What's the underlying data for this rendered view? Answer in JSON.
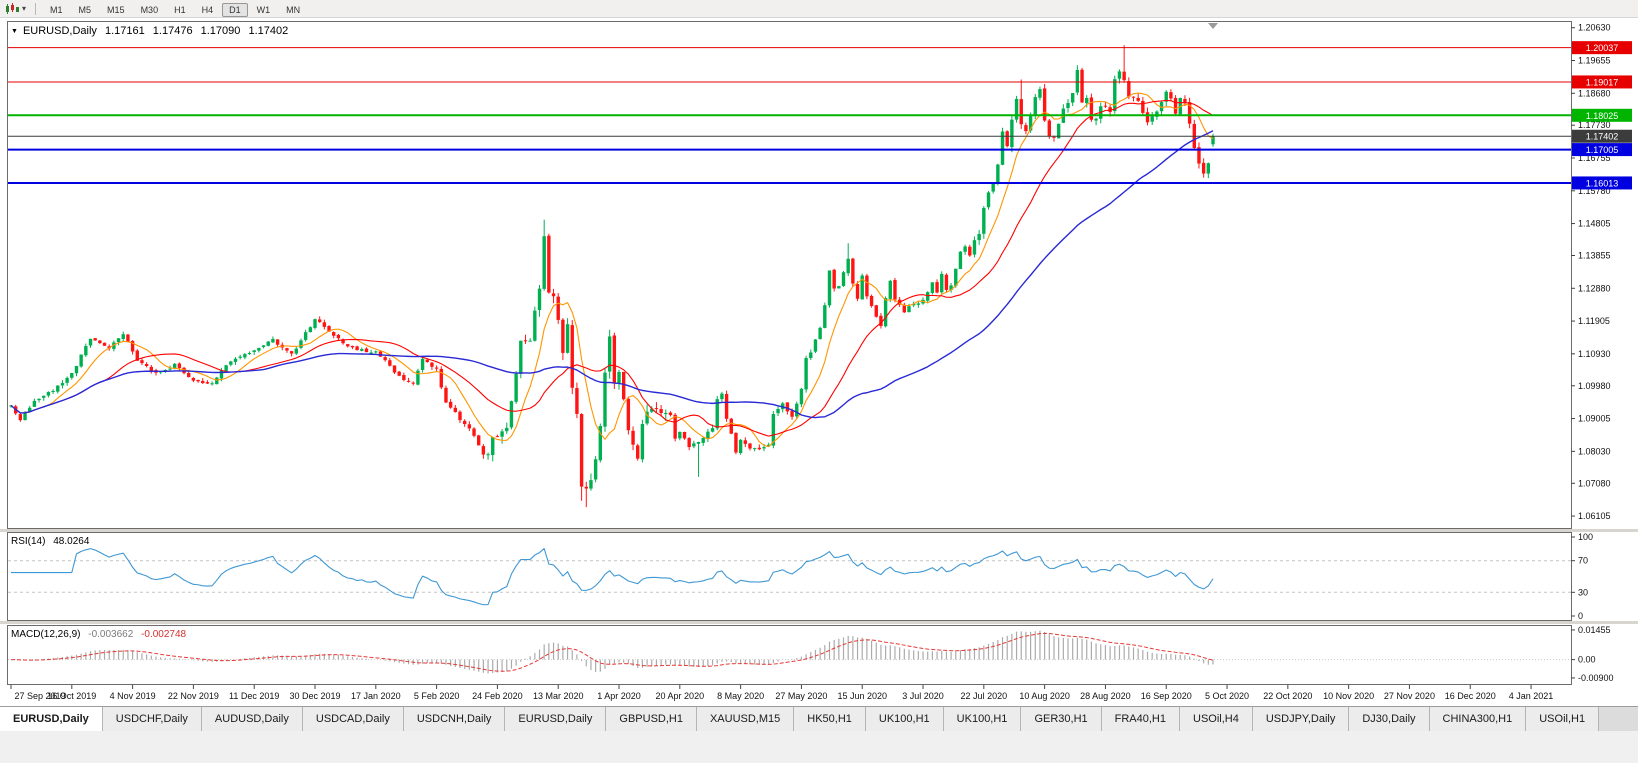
{
  "toolbar": {
    "timeframes": [
      "M1",
      "M5",
      "M15",
      "M30",
      "H1",
      "H4",
      "D1",
      "W1",
      "MN"
    ],
    "active_timeframe": "D1"
  },
  "chart": {
    "title": {
      "symbol": "EURUSD,Daily",
      "open": "1.17161",
      "high": "1.17476",
      "low": "1.17090",
      "close": "1.17402"
    },
    "price_axis_labels": [
      "1.20630",
      "1.19655",
      "1.18680",
      "1.17730",
      "1.16755",
      "1.15780",
      "1.14805",
      "1.13855",
      "1.12880",
      "1.11905",
      "1.10930",
      "1.09980",
      "1.09005",
      "1.08030",
      "1.07080",
      "1.06105"
    ],
    "levels": [
      {
        "value": 1.20037,
        "label": "1.20037",
        "color": "#e60000",
        "line_width": 1
      },
      {
        "value": 1.19017,
        "label": "1.19017",
        "color": "#e60000",
        "line_width": 1
      },
      {
        "value": 1.18025,
        "label": "1.18025",
        "color": "#00b400",
        "line_width": 2
      },
      {
        "value": 1.17402,
        "label": "1.17402",
        "color": "#3c3c3c",
        "line_width": 1,
        "current": true
      },
      {
        "value": 1.17005,
        "label": "1.17005",
        "color": "#0000e0",
        "line_width": 2
      },
      {
        "value": 1.16013,
        "label": "1.16013",
        "color": "#0000e0",
        "line_width": 2
      }
    ],
    "date_labels": [
      "27 Sep 2019",
      "16 Oct 2019",
      "4 Nov 2019",
      "22 Nov 2019",
      "11 Dec 2019",
      "30 Dec 2019",
      "17 Jan 2020",
      "5 Feb 2020",
      "24 Feb 2020",
      "13 Mar 2020",
      "1 Apr 2020",
      "20 Apr 2020",
      "8 May 2020",
      "27 May 2020",
      "15 Jun 2020",
      "3 Jul 2020",
      "22 Jul 2020",
      "10 Aug 2020",
      "28 Aug 2020",
      "16 Sep 2020",
      "5 Oct 2020",
      "22 Oct 2020",
      "10 Nov 2020",
      "27 Nov 2020",
      "16 Dec 2020",
      "4 Jan 2021"
    ],
    "colors": {
      "up": "#00b050",
      "down": "#ff1414",
      "ma_fast": "#ff9500",
      "ma_mid": "#ff0000",
      "ma_slow": "#2929d6",
      "rsi": "#3f98d4",
      "macd_hist": "#ababab",
      "macd_signal": "#e53935"
    }
  },
  "indicators": {
    "rsi": {
      "name": "RSI(14)",
      "value": "48.0264",
      "levels": [
        {
          "value": 100,
          "label": "100"
        },
        {
          "value": 70,
          "label": "70",
          "dashed": true
        },
        {
          "value": 30,
          "label": "30",
          "dashed": true
        },
        {
          "value": 0,
          "label": "0"
        }
      ]
    },
    "macd": {
      "name": "MACD(12,26,9)",
      "value_main": "-0.003662",
      "value_signal": "-0.002748",
      "levels": [
        {
          "value": 0.01455,
          "label": "0.01455"
        },
        {
          "value": 0,
          "label": "0.00"
        },
        {
          "value": -0.009,
          "label": "-0.00900"
        }
      ]
    }
  },
  "tabs": [
    {
      "label": "EURUSD,Daily",
      "active": true
    },
    {
      "label": "USDCHF,Daily"
    },
    {
      "label": "AUDUSD,Daily"
    },
    {
      "label": "USDCAD,Daily"
    },
    {
      "label": "USDCNH,Daily"
    },
    {
      "label": "EURUSD,Daily"
    },
    {
      "label": "GBPUSD,H1"
    },
    {
      "label": "XAUUSD,M15"
    },
    {
      "label": "HK50,H1"
    },
    {
      "label": "UK100,H1"
    },
    {
      "label": "UK100,H1"
    },
    {
      "label": "GER30,H1"
    },
    {
      "label": "FRA40,H1"
    },
    {
      "label": "USOil,H4"
    },
    {
      "label": "USDJPY,Daily"
    },
    {
      "label": "DJ30,Daily"
    },
    {
      "label": "CHINA300,H1"
    },
    {
      "label": "USOil,H1"
    }
  ],
  "chart_data": {
    "type": "candlestick",
    "symbol": "EURUSD",
    "timeframe": "Daily",
    "bars": 258,
    "x_range": [
      "27 Sep 2019",
      "29 Sep 2020"
    ],
    "y_range": [
      1.0575,
      1.208
    ],
    "last_candle": {
      "open": 1.17161,
      "high": 1.17476,
      "low": 1.1709,
      "close": 1.17402
    },
    "ma_periods": [
      8,
      21,
      55
    ],
    "key_levels": [
      1.20037,
      1.19017,
      1.18025,
      1.17005,
      1.16013
    ],
    "anchors": [
      [
        0,
        1.0938
      ],
      [
        2,
        1.09
      ],
      [
        5,
        1.0955
      ],
      [
        9,
        1.0985
      ],
      [
        13,
        1.1035
      ],
      [
        17,
        1.114
      ],
      [
        21,
        1.111
      ],
      [
        24,
        1.1155
      ],
      [
        27,
        1.1075
      ],
      [
        31,
        1.1035
      ],
      [
        35,
        1.106
      ],
      [
        39,
        1.1015
      ],
      [
        43,
        1.1005
      ],
      [
        47,
        1.1075
      ],
      [
        52,
        1.1105
      ],
      [
        56,
        1.1135
      ],
      [
        60,
        1.109
      ],
      [
        64,
        1.1175
      ],
      [
        65,
        1.12
      ],
      [
        67,
        1.117
      ],
      [
        70,
        1.1135
      ],
      [
        74,
        1.1105
      ],
      [
        78,
        1.11
      ],
      [
        83,
        1.1025
      ],
      [
        86,
        1.1
      ],
      [
        88,
        1.108
      ],
      [
        91,
        1.1045
      ],
      [
        93,
        1.0945
      ],
      [
        98,
        1.087
      ],
      [
        101,
        1.0795
      ],
      [
        102,
        1.0785
      ],
      [
        103,
        1.0845
      ],
      [
        104,
        1.085
      ],
      [
        106,
        1.088
      ],
      [
        108,
        1.1025
      ],
      [
        109,
        1.1135
      ],
      [
        111,
        1.1135
      ],
      [
        113,
        1.1285
      ],
      [
        114,
        1.145
      ],
      [
        115,
        1.128
      ],
      [
        116,
        1.127
      ],
      [
        117,
        1.1185
      ],
      [
        118,
        1.1105
      ],
      [
        119,
        1.118
      ],
      [
        120,
        1.0995
      ],
      [
        121,
        1.0915
      ],
      [
        122,
        1.069
      ],
      [
        123,
        1.0695
      ],
      [
        124,
        1.0725
      ],
      [
        125,
        1.0785
      ],
      [
        126,
        1.088
      ],
      [
        127,
        1.103
      ],
      [
        128,
        1.114
      ],
      [
        129,
        1.1015
      ],
      [
        130,
        1.103
      ],
      [
        131,
        1.096
      ],
      [
        132,
        1.0855
      ],
      [
        134,
        1.079
      ],
      [
        135,
        1.089
      ],
      [
        137,
        1.093
      ],
      [
        139,
        1.0915
      ],
      [
        141,
        1.091
      ],
      [
        142,
        1.084
      ],
      [
        143,
        1.0865
      ],
      [
        145,
        1.082
      ],
      [
        147,
        1.0825
      ],
      [
        150,
        1.0875
      ],
      [
        151,
        1.0955
      ],
      [
        152,
        1.098
      ],
      [
        153,
        1.0905
      ],
      [
        155,
        1.0795
      ],
      [
        156,
        1.0835
      ],
      [
        158,
        1.081
      ],
      [
        160,
        1.0815
      ],
      [
        162,
        1.082
      ],
      [
        163,
        1.0915
      ],
      [
        165,
        1.095
      ],
      [
        167,
        1.09
      ],
      [
        169,
        1.0985
      ],
      [
        170,
        1.1075
      ],
      [
        171,
        1.11
      ],
      [
        172,
        1.1135
      ],
      [
        173,
        1.117
      ],
      [
        174,
        1.1235
      ],
      [
        175,
        1.134
      ],
      [
        176,
        1.129
      ],
      [
        177,
        1.1295
      ],
      [
        178,
        1.134
      ],
      [
        179,
        1.1375
      ],
      [
        180,
        1.13
      ],
      [
        181,
        1.1255
      ],
      [
        182,
        1.1325
      ],
      [
        183,
        1.1265
      ],
      [
        185,
        1.1205
      ],
      [
        186,
        1.118
      ],
      [
        187,
        1.126
      ],
      [
        188,
        1.131
      ],
      [
        189,
        1.125
      ],
      [
        191,
        1.122
      ],
      [
        193,
        1.124
      ],
      [
        195,
        1.125
      ],
      [
        197,
        1.131
      ],
      [
        198,
        1.1275
      ],
      [
        199,
        1.133
      ],
      [
        200,
        1.1285
      ],
      [
        201,
        1.13
      ],
      [
        202,
        1.1345
      ],
      [
        203,
        1.1395
      ],
      [
        204,
        1.141
      ],
      [
        205,
        1.1385
      ],
      [
        206,
        1.1425
      ],
      [
        207,
        1.1445
      ],
      [
        208,
        1.1525
      ],
      [
        209,
        1.157
      ],
      [
        210,
        1.1595
      ],
      [
        211,
        1.1655
      ],
      [
        212,
        1.175
      ],
      [
        213,
        1.1715
      ],
      [
        214,
        1.179
      ],
      [
        215,
        1.1845
      ],
      [
        216,
        1.178
      ],
      [
        217,
        1.176
      ],
      [
        218,
        1.18
      ],
      [
        219,
        1.186
      ],
      [
        220,
        1.1875
      ],
      [
        221,
        1.179
      ],
      [
        222,
        1.174
      ],
      [
        223,
        1.174
      ],
      [
        224,
        1.1785
      ],
      [
        225,
        1.1815
      ],
      [
        226,
        1.184
      ],
      [
        227,
        1.187
      ],
      [
        228,
        1.193
      ],
      [
        229,
        1.184
      ],
      [
        230,
        1.1855
      ],
      [
        231,
        1.1795
      ],
      [
        232,
        1.179
      ],
      [
        233,
        1.1835
      ],
      [
        234,
        1.183
      ],
      [
        235,
        1.182
      ],
      [
        236,
        1.1905
      ],
      [
        237,
        1.1935
      ],
      [
        238,
        1.191
      ],
      [
        239,
        1.1855
      ],
      [
        240,
        1.185
      ],
      [
        241,
        1.184
      ],
      [
        242,
        1.1815
      ],
      [
        243,
        1.178
      ],
      [
        244,
        1.18
      ],
      [
        245,
        1.1815
      ],
      [
        246,
        1.1845
      ],
      [
        247,
        1.1865
      ],
      [
        248,
        1.1845
      ],
      [
        249,
        1.1815
      ],
      [
        250,
        1.185
      ],
      [
        251,
        1.184
      ],
      [
        252,
        1.177
      ],
      [
        253,
        1.1705
      ],
      [
        254,
        1.166
      ],
      [
        255,
        1.1631
      ],
      [
        256,
        1.1665
      ],
      [
        257,
        1.174
      ]
    ],
    "wick_overrides": {
      "102": {
        "low": 1.0778
      },
      "114": {
        "high": 1.1492
      },
      "122": {
        "low": 1.0656
      },
      "123": {
        "low": 1.0637
      },
      "147": {
        "low": 1.0727
      },
      "179": {
        "high": 1.1422
      },
      "216": {
        "high": 1.1909
      },
      "238": {
        "high": 1.2011
      }
    }
  }
}
